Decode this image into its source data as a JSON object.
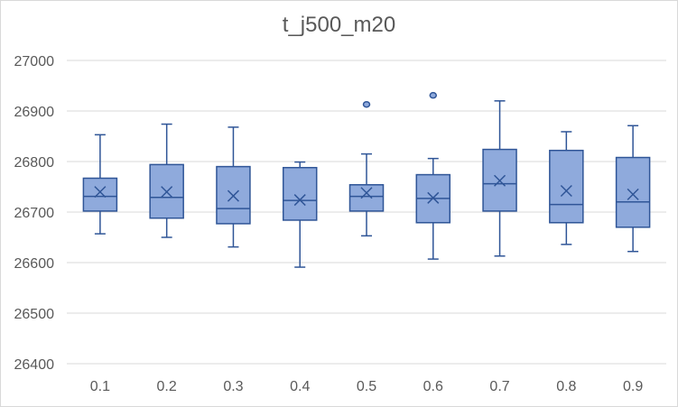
{
  "chart_data": {
    "type": "box",
    "title": "t_j500_m20",
    "xlabel": "",
    "ylabel": "",
    "ylim": [
      26400,
      27000
    ],
    "yticks": [
      26400,
      26500,
      26600,
      26700,
      26800,
      26900,
      27000
    ],
    "grid": true,
    "legend": "none",
    "categories": [
      "0.1",
      "0.2",
      "0.3",
      "0.4",
      "0.5",
      "0.6",
      "0.7",
      "0.8",
      "0.9"
    ],
    "boxes": [
      {
        "category": "0.1",
        "whisker_low": 26657,
        "q1": 26702,
        "median": 26731,
        "q3": 26767,
        "whisker_high": 26853,
        "mean": 26740,
        "outliers": []
      },
      {
        "category": "0.2",
        "whisker_low": 26650,
        "q1": 26688,
        "median": 26729,
        "q3": 26794,
        "whisker_high": 26874,
        "mean": 26740,
        "outliers": []
      },
      {
        "category": "0.3",
        "whisker_low": 26631,
        "q1": 26677,
        "median": 26707,
        "q3": 26790,
        "whisker_high": 26868,
        "mean": 26732,
        "outliers": []
      },
      {
        "category": "0.4",
        "whisker_low": 26591,
        "q1": 26684,
        "median": 26723,
        "q3": 26788,
        "whisker_high": 26799,
        "mean": 26724,
        "outliers": []
      },
      {
        "category": "0.5",
        "whisker_low": 26653,
        "q1": 26702,
        "median": 26731,
        "q3": 26754,
        "whisker_high": 26815,
        "mean": 26738,
        "outliers": [
          26913
        ]
      },
      {
        "category": "0.6",
        "whisker_low": 26607,
        "q1": 26679,
        "median": 26727,
        "q3": 26774,
        "whisker_high": 26806,
        "mean": 26728,
        "outliers": [
          26931
        ]
      },
      {
        "category": "0.7",
        "whisker_low": 26613,
        "q1": 26702,
        "median": 26756,
        "q3": 26824,
        "whisker_high": 26920,
        "mean": 26762,
        "outliers": []
      },
      {
        "category": "0.8",
        "whisker_low": 26636,
        "q1": 26679,
        "median": 26715,
        "q3": 26822,
        "whisker_high": 26859,
        "mean": 26742,
        "outliers": []
      },
      {
        "category": "0.9",
        "whisker_low": 26622,
        "q1": 26670,
        "median": 26720,
        "q3": 26808,
        "whisker_high": 26871,
        "mean": 26735,
        "outliers": []
      }
    ],
    "colors": {
      "box_fill": "#8faadc",
      "box_stroke": "#2f5597",
      "grid": "#d9d9d9",
      "text": "#595959"
    }
  }
}
